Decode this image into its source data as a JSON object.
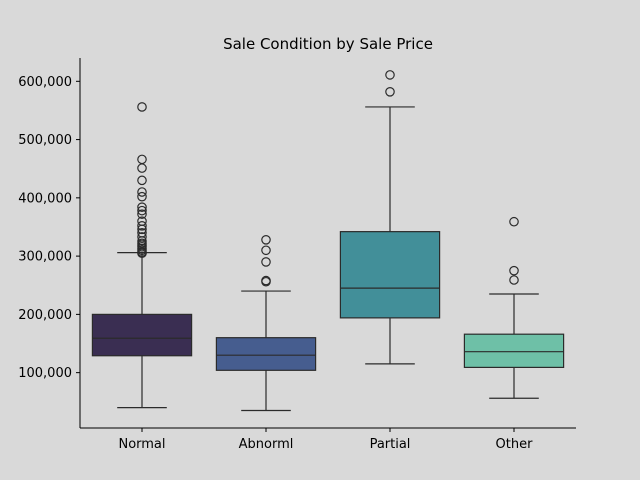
{
  "chart_data": {
    "type": "box",
    "title": "Sale Condition by Sale Price",
    "xlabel": "",
    "ylabel": "",
    "categories": [
      "Normal",
      "Abnorml",
      "Partial",
      "Other"
    ],
    "colors": [
      "#3a2e52",
      "#465d8f",
      "#428f99",
      "#6ec0a7"
    ],
    "ylim": [
      5000,
      640000
    ],
    "yticks": [
      100000,
      200000,
      300000,
      400000,
      500000,
      600000
    ],
    "ytick_labels": [
      "100,000",
      "200,000",
      "300,000",
      "400,000",
      "500,000",
      "600,000"
    ],
    "grid": false,
    "boxes": [
      {
        "label": "Normal",
        "whisker_low": 40000,
        "q1": 129000,
        "median": 159000,
        "q3": 200000,
        "whisker_high": 306000,
        "outliers": [
          305000,
          307000,
          310000,
          313000,
          316000,
          319000,
          322000,
          326000,
          333000,
          340000,
          346000,
          352000,
          360000,
          372000,
          378000,
          384000,
          402000,
          410000,
          430000,
          451000,
          466000,
          556000
        ]
      },
      {
        "label": "Abnorml",
        "whisker_low": 35000,
        "q1": 104000,
        "median": 130000,
        "q3": 160000,
        "whisker_high": 240000,
        "outliers": [
          256000,
          258000,
          290000,
          310000,
          328000
        ]
      },
      {
        "label": "Partial",
        "whisker_low": 115000,
        "q1": 194000,
        "median": 245000,
        "q3": 342000,
        "whisker_high": 556000,
        "outliers": [
          582000,
          611000
        ]
      },
      {
        "label": "Other",
        "whisker_low": 56000,
        "q1": 109000,
        "median": 136000,
        "q3": 166000,
        "whisker_high": 235000,
        "outliers": [
          259000,
          275000,
          359000
        ]
      }
    ]
  }
}
